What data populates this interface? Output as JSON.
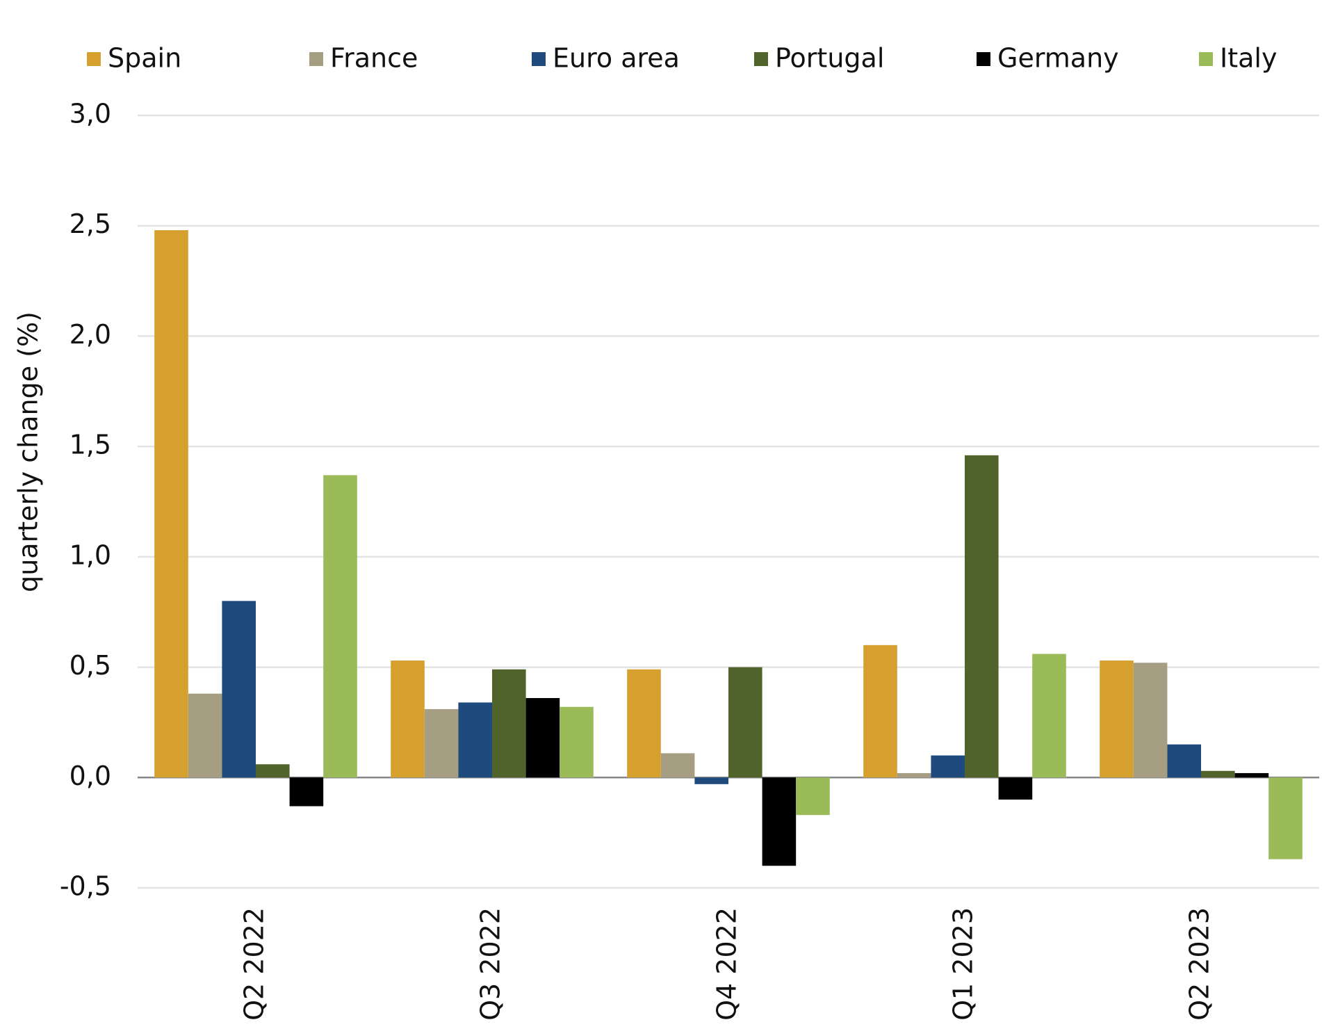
{
  "chart_data": {
    "type": "bar",
    "y_label": "quarterly change (%)",
    "categories": [
      "Q2 2022",
      "Q3 2022",
      "Q4 2022",
      "Q1 2023",
      "Q2 2023"
    ],
    "series": [
      {
        "name": "Spain",
        "color": "#d6a02f",
        "values": [
          2.48,
          0.53,
          0.49,
          0.6,
          0.53
        ]
      },
      {
        "name": "France",
        "color": "#a59e82",
        "values": [
          0.38,
          0.31,
          0.11,
          0.02,
          0.52
        ]
      },
      {
        "name": "Euro area",
        "color": "#1f4a7e",
        "values": [
          0.8,
          0.34,
          -0.03,
          0.1,
          0.15
        ]
      },
      {
        "name": "Portugal",
        "color": "#50632a",
        "values": [
          0.06,
          0.49,
          0.5,
          1.46,
          0.03
        ]
      },
      {
        "name": "Germany",
        "color": "#000000",
        "values": [
          -0.13,
          0.36,
          -0.4,
          -0.1,
          0.02
        ]
      },
      {
        "name": "Italy",
        "color": "#9bbb59",
        "values": [
          1.37,
          0.32,
          -0.17,
          0.56,
          -0.37
        ]
      }
    ],
    "ylim": [
      -0.5,
      3.0
    ],
    "yticks": [
      {
        "value": -0.5,
        "label": "-0,5"
      },
      {
        "value": 0,
        "label": "0,0"
      },
      {
        "value": 0.5,
        "label": "0,5"
      },
      {
        "value": 1.0,
        "label": "1,0"
      },
      {
        "value": 1.5,
        "label": "1,5"
      },
      {
        "value": 2.0,
        "label": "2,0"
      },
      {
        "value": 2.5,
        "label": "2,5"
      },
      {
        "value": 3.0,
        "label": "3,0"
      }
    ],
    "grid": true,
    "legend": "top"
  }
}
